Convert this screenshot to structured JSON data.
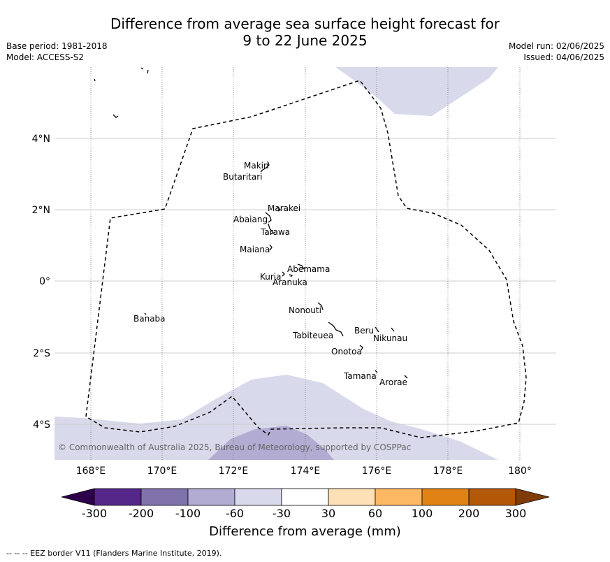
{
  "title_line1": "Difference from average sea surface height forecast for",
  "title_line2": "9 to 22 June 2025",
  "base_period": "Base period: 1981-2018",
  "model": "Model: ACCESS-S2",
  "model_run": "Model run: 02/06/2025",
  "issued": "Issued: 04/06/2025",
  "copyright": "© Commonwealth of Australia 2025, Bureau of Meteorology, supported by COSPPac",
  "lon_labels": [
    "168°E",
    "170°E",
    "172°E",
    "174°E",
    "176°E",
    "178°E",
    "180°"
  ],
  "lat_labels": [
    "4°N",
    "2°N",
    "0°",
    "2°S",
    "4°S"
  ],
  "islands": [
    {
      "name": "Makin"
    },
    {
      "name": "Butaritari"
    },
    {
      "name": "Marakei"
    },
    {
      "name": "Abaiang"
    },
    {
      "name": "Tarawa"
    },
    {
      "name": "Maiana"
    },
    {
      "name": "Abemama"
    },
    {
      "name": "Kuria"
    },
    {
      "name": "Aranuka"
    },
    {
      "name": "Nonouti"
    },
    {
      "name": "Banaba"
    },
    {
      "name": "Tabiteuea"
    },
    {
      "name": "Beru"
    },
    {
      "name": "Nikunau"
    },
    {
      "name": "Onotoa"
    },
    {
      "name": "Tamana"
    },
    {
      "name": "Arorae"
    }
  ],
  "colorbar": {
    "title": "Difference from average (mm)",
    "tick_labels": [
      "-300",
      "-200",
      "-100",
      "-60",
      "-30",
      "30",
      "60",
      "100",
      "200",
      "300"
    ],
    "colors": [
      "#2d004b",
      "#542788",
      "#8073ac",
      "#b2abd2",
      "#d8daeb",
      "#ffffff",
      "#fee0b6",
      "#fdb863",
      "#e08214",
      "#b35806",
      "#7f3b08"
    ]
  },
  "footer": "--  --  -- EEZ border V11 (Flanders Marine Institute, 2019)."
}
